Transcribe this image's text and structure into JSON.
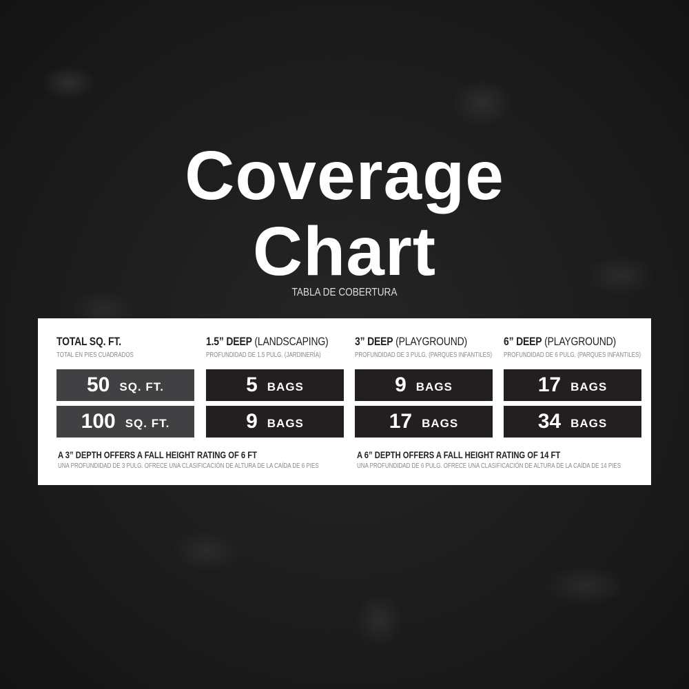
{
  "title_line1": "Coverage",
  "title_line2": "Chart",
  "subtitle": "TABLA DE COBERTURA",
  "columns": [
    {
      "title_bold": "TOTAL SQ. FT.",
      "title_rest": "",
      "subtitle": "TOTAL EN PIES CUADRADOS",
      "unit": "SQ. FT.",
      "values": [
        "50",
        "100"
      ]
    },
    {
      "title_bold": "1.5” DEEP",
      "title_rest": " (LANDSCAPING)",
      "subtitle": "PROFUNDIDAD DE 1.5 PULG. (JARDINERÍA)",
      "unit": "BAGS",
      "values": [
        "5",
        "9"
      ]
    },
    {
      "title_bold": "3” DEEP",
      "title_rest": " (PLAYGROUND)",
      "subtitle": "PROFUNDIDAD DE 3 PULG. (PARQUES INFANTILES)",
      "unit": "BAGS",
      "values": [
        "9",
        "17"
      ]
    },
    {
      "title_bold": "6” DEEP",
      "title_rest": " (PLAYGROUND)",
      "subtitle": "PROFUNDIDAD DE 6 PULG. (PARQUES INFANTILES)",
      "unit": "BAGS",
      "values": [
        "17",
        "34"
      ]
    }
  ],
  "notes": [
    {
      "text": "A 3” DEPTH OFFERS A FALL HEIGHT RATING OF 6 FT",
      "subtext": "UNA PROFUNDIDAD DE 3 PULG. OFRECE UNA CLASIFICACIÓN DE ALTURA DE LA CAÍDA DE 6 PIES"
    },
    {
      "text": "A 6” DEPTH OFFERS A FALL HEIGHT RATING OF 14 FT",
      "subtext": "UNA PROFUNDIDAD DE 6 PULG. OFRECE UNA CLASIFICACIÓN DE ALTURA DE LA CAÍDA DE 14 PIES"
    }
  ],
  "colors": {
    "cell_dark": "#231f20",
    "cell_gray": "#414042",
    "panel": "#ffffff"
  }
}
